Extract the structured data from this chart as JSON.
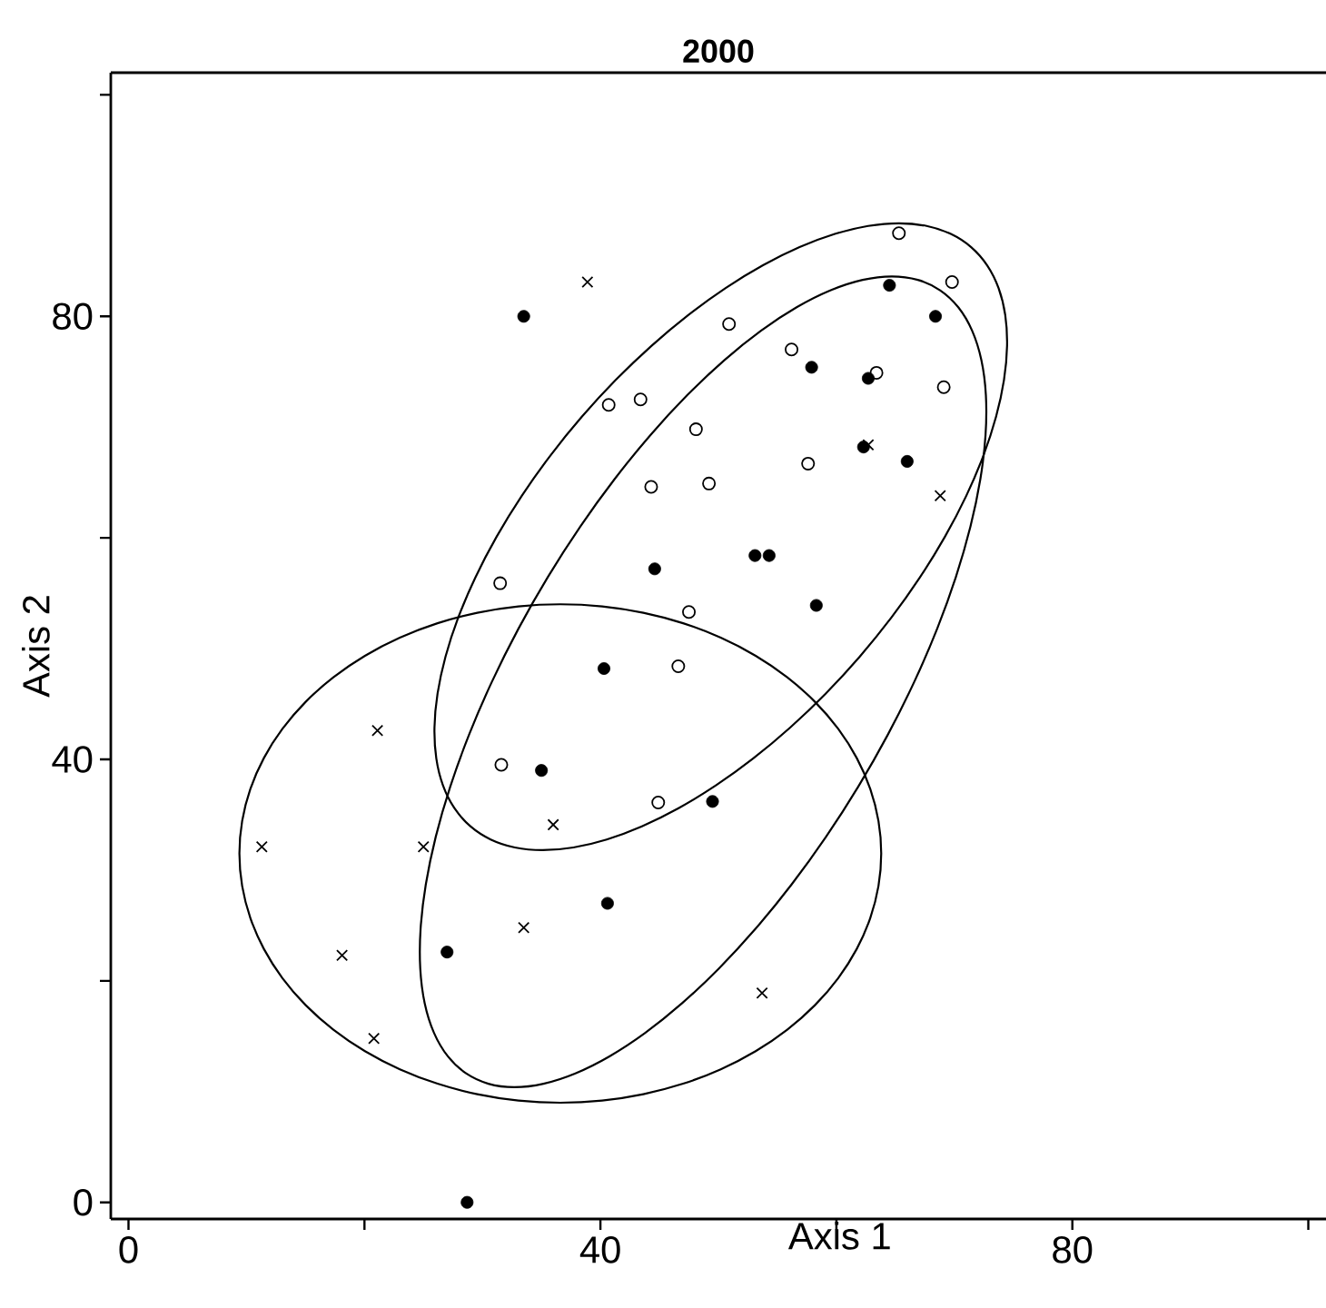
{
  "chart_data": {
    "type": "scatter",
    "title": "2000",
    "xlabel": "Axis 1",
    "ylabel": "Axis 2",
    "xlim": [
      -1.5,
      101.5
    ],
    "ylim": [
      -1.5,
      102
    ],
    "xticks": [
      0,
      {
        "value": 20,
        "label": null
      },
      40,
      {
        "value": 60,
        "label": null
      },
      80,
      {
        "value": 100,
        "label": null
      }
    ],
    "yticks": [
      0,
      {
        "value": 20,
        "label": null
      },
      40,
      {
        "value": 60,
        "label": null
      },
      80,
      {
        "value": 100,
        "label": null
      }
    ],
    "grid": false,
    "legend": false,
    "series": [
      {
        "type": "scatter",
        "marker": "circle",
        "color": "#000000",
        "x": [
          33.5,
          40.3,
          44.6,
          35.0,
          49.5,
          40.6,
          27.0,
          28.7,
          53.1,
          54.3,
          58.3,
          57.9,
          62.7,
          62.3,
          66.0,
          64.5,
          68.4
        ],
        "values": [
          80.0,
          48.2,
          57.2,
          39.0,
          36.2,
          27.0,
          22.6,
          0.0,
          58.4,
          58.4,
          53.9,
          75.4,
          74.4,
          68.2,
          66.9,
          82.8,
          80.0
        ]
      },
      {
        "type": "scatter",
        "marker": "circle_open",
        "color": "#000000",
        "x": [
          50.9,
          40.7,
          43.4,
          48.1,
          44.3,
          49.2,
          31.5,
          47.5,
          46.6,
          65.3,
          69.8,
          56.2,
          63.4,
          69.1,
          57.6,
          31.6,
          44.9
        ],
        "values": [
          79.3,
          72.0,
          72.5,
          69.8,
          64.6,
          64.9,
          55.9,
          53.3,
          48.4,
          87.5,
          83.1,
          77.0,
          74.9,
          73.6,
          66.7,
          39.5,
          36.1
        ]
      },
      {
        "type": "scatter",
        "marker": "cross",
        "color": "#000000",
        "x": [
          38.9,
          62.7,
          68.8,
          21.1,
          11.3,
          25.0,
          36.0,
          18.1,
          33.5,
          20.8,
          53.7
        ],
        "values": [
          83.1,
          68.4,
          63.8,
          42.6,
          32.1,
          32.1,
          34.1,
          22.3,
          24.8,
          14.8,
          18.9
        ]
      }
    ]
  }
}
